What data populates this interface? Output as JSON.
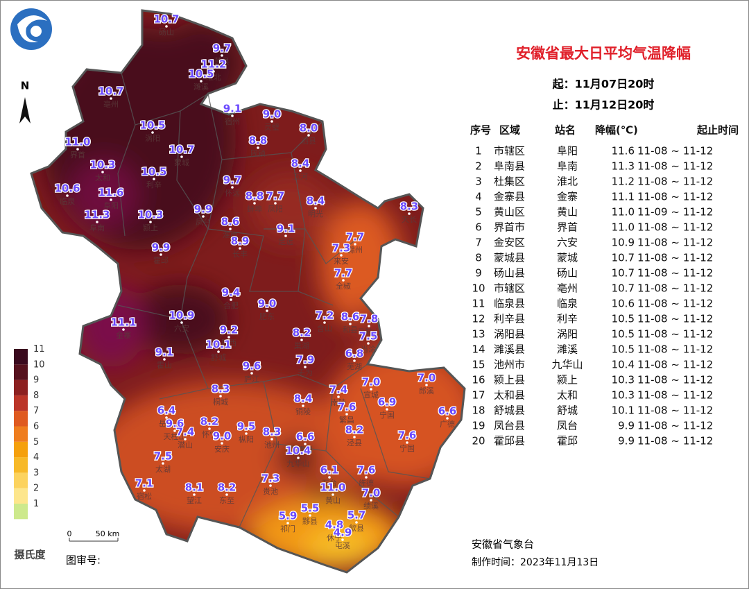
{
  "header": {
    "title": "安徽省最大日平均气温降幅",
    "start": "起：11月07日20时",
    "end": "止：11月12日20时"
  },
  "compass": "N",
  "legend": {
    "unit": "摄氏度",
    "levels": [
      {
        "label": "1",
        "color": "#cde98c"
      },
      {
        "label": "2",
        "color": "#fde68c"
      },
      {
        "label": "3",
        "color": "#fcd35e"
      },
      {
        "label": "4",
        "color": "#f7b928"
      },
      {
        "label": "5",
        "color": "#f5a00c"
      },
      {
        "label": "6",
        "color": "#ef7d1e"
      },
      {
        "label": "7",
        "color": "#df5a20"
      },
      {
        "label": "8",
        "color": "#bb3528"
      },
      {
        "label": "9",
        "color": "#8c2020"
      },
      {
        "label": "10",
        "color": "#56121e"
      },
      {
        "label": "11",
        "color": "#3a0a1e"
      }
    ]
  },
  "scalebar": {
    "start": "0",
    "end": "50 km"
  },
  "review": "图审号:",
  "table": {
    "headers": [
      "序号",
      "区域",
      "站名",
      "降幅(℃)",
      "起止时间"
    ],
    "rows": [
      [
        "1",
        "市辖区",
        "阜阳",
        "11.6",
        "11-08 ~ 11-12"
      ],
      [
        "2",
        "阜南县",
        "阜南",
        "11.3",
        "11-08 ~ 11-12"
      ],
      [
        "3",
        "杜集区",
        "淮北",
        "11.2",
        "11-08 ~ 11-12"
      ],
      [
        "4",
        "金寨县",
        "金寨",
        "11.1",
        "11-08 ~ 11-12"
      ],
      [
        "5",
        "黄山区",
        "黄山",
        "11.0",
        "11-09 ~ 11-12"
      ],
      [
        "6",
        "界首市",
        "界首",
        "11.0",
        "11-08 ~ 11-12"
      ],
      [
        "7",
        "金安区",
        "六安",
        "10.9",
        "11-08 ~ 11-12"
      ],
      [
        "8",
        "蒙城县",
        "蒙城",
        "10.7",
        "11-08 ~ 11-12"
      ],
      [
        "9",
        "砀山县",
        "砀山",
        "10.7",
        "11-08 ~ 11-12"
      ],
      [
        "10",
        "市辖区",
        "亳州",
        "10.7",
        "11-08 ~ 11-12"
      ],
      [
        "11",
        "临泉县",
        "临泉",
        "10.6",
        "11-08 ~ 11-12"
      ],
      [
        "12",
        "利辛县",
        "利辛",
        "10.5",
        "11-08 ~ 11-12"
      ],
      [
        "13",
        "涡阳县",
        "涡阳",
        "10.5",
        "11-08 ~ 11-12"
      ],
      [
        "14",
        "濉溪县",
        "濉溪",
        "10.5",
        "11-08 ~ 11-12"
      ],
      [
        "15",
        "池州市",
        "九华山",
        "10.4",
        "11-08 ~ 11-12"
      ],
      [
        "16",
        "颍上县",
        "颍上",
        "10.3",
        "11-08 ~ 11-12"
      ],
      [
        "17",
        "太和县",
        "太和",
        "10.3",
        "11-08 ~ 11-12"
      ],
      [
        "18",
        "舒城县",
        "舒城",
        "10.1",
        "11-08 ~ 11-12"
      ],
      [
        "19",
        "凤台县",
        "凤台",
        "9.9",
        "11-08 ~ 11-12"
      ],
      [
        "20",
        "霍邱县",
        "霍邱",
        "9.9",
        "11-08 ~ 11-12"
      ]
    ]
  },
  "footer": {
    "org": "安徽省气象台",
    "made": "制作时间：2023年11月13日"
  },
  "stations": [
    {
      "value": "10.7",
      "name": "砀山"
    },
    {
      "value": "9.7",
      "name": "萧县"
    },
    {
      "value": "11.2",
      "name": "淮北"
    },
    {
      "value": "10.5",
      "name": "濉溪"
    },
    {
      "value": "10.7",
      "name": "亳州"
    },
    {
      "value": "9.1",
      "name": "宿州"
    },
    {
      "value": "9.0",
      "name": "灵璧"
    },
    {
      "value": "8.0",
      "name": "泗县"
    },
    {
      "value": "10.5",
      "name": "涡阳"
    },
    {
      "value": "11.0",
      "name": "界首"
    },
    {
      "value": "8.8",
      "name": "固镇"
    },
    {
      "value": "10.7",
      "name": "蒙城"
    },
    {
      "value": "10.3",
      "name": "太和"
    },
    {
      "value": "8.4",
      "name": "五河"
    },
    {
      "value": "10.5",
      "name": "利辛"
    },
    {
      "value": "9.7",
      "name": "怀远"
    },
    {
      "value": "10.6",
      "name": "临泉"
    },
    {
      "value": "11.6",
      "name": "阜阳"
    },
    {
      "value": "8.8",
      "name": "蚌埠"
    },
    {
      "value": "7.7",
      "name": "凤阳"
    },
    {
      "value": "8.4",
      "name": "明光"
    },
    {
      "value": "8.3",
      "name": "天长"
    },
    {
      "value": "11.3",
      "name": "阜南"
    },
    {
      "value": "10.3",
      "name": "颍上"
    },
    {
      "value": "9.9",
      "name": "凤台"
    },
    {
      "value": "8.6",
      "name": "淮南"
    },
    {
      "value": "9.1",
      "name": "定远"
    },
    {
      "value": "7.7",
      "name": "滁州"
    },
    {
      "value": "8.9",
      "name": "长丰"
    },
    {
      "value": "7.3",
      "name": "来安"
    },
    {
      "value": "9.9",
      "name": "霍邱"
    },
    {
      "value": "7.7",
      "name": "全椒"
    },
    {
      "value": "9.4",
      "name": "合肥"
    },
    {
      "value": "9.0",
      "name": "肥东"
    },
    {
      "value": "10.9",
      "name": "六安"
    },
    {
      "value": "11.1",
      "name": "金寨"
    },
    {
      "value": "7.2",
      "name": "含山"
    },
    {
      "value": "8.6",
      "name": "和县"
    },
    {
      "value": "7.8",
      "name": "马鞍山"
    },
    {
      "value": "9.2",
      "name": "肥西"
    },
    {
      "value": "10.1",
      "name": "舒城"
    },
    {
      "value": "7.5",
      "name": "当涂"
    },
    {
      "value": "8.2",
      "name": "巢湖"
    },
    {
      "value": "9.1",
      "name": "霍山"
    },
    {
      "value": "6.8",
      "name": "芜湖"
    },
    {
      "value": "7.9",
      "name": "无为"
    },
    {
      "value": "9.6",
      "name": "庐江"
    },
    {
      "value": "7.0",
      "name": "宣城"
    },
    {
      "value": "7.0",
      "name": "郎溪"
    },
    {
      "value": "8.3",
      "name": "桐城"
    },
    {
      "value": "7.4",
      "name": "南陵"
    },
    {
      "value": "8.4",
      "name": "铜陵"
    },
    {
      "value": "6.9",
      "name": "宁国"
    },
    {
      "value": "7.6",
      "name": "繁昌"
    },
    {
      "value": "6.6",
      "name": "广德"
    },
    {
      "value": "6.4",
      "name": "岳西"
    },
    {
      "value": "9.6",
      "name": "天柱山"
    },
    {
      "value": "8.2",
      "name": "怀宁"
    },
    {
      "value": "7.4",
      "name": "潜山"
    },
    {
      "value": "9.5",
      "name": "枞阳"
    },
    {
      "value": "8.3",
      "name": "池州"
    },
    {
      "value": "9.0",
      "name": "安庆"
    },
    {
      "value": "8.2",
      "name": "泾县"
    },
    {
      "value": "6.6",
      "name": "青阳"
    },
    {
      "value": "7.6",
      "name": "宁国"
    },
    {
      "value": "7.5",
      "name": "太湖"
    },
    {
      "value": "10.4",
      "name": "九华山"
    },
    {
      "value": "6.1",
      "name": "石台"
    },
    {
      "value": "7.6",
      "name": "旌德"
    },
    {
      "value": "7.1",
      "name": "宿松"
    },
    {
      "value": "8.1",
      "name": "望江"
    },
    {
      "value": "8.2",
      "name": "东至"
    },
    {
      "value": "7.3",
      "name": "贵池"
    },
    {
      "value": "11.0",
      "name": "黄山"
    },
    {
      "value": "7.0",
      "name": "绩溪"
    },
    {
      "value": "5.5",
      "name": "黟县"
    },
    {
      "value": "5.9",
      "name": "祁门"
    },
    {
      "value": "5.7",
      "name": "歙县"
    },
    {
      "value": "4.8",
      "name": "休宁"
    },
    {
      "value": "4.9",
      "name": "屯溪"
    }
  ]
}
